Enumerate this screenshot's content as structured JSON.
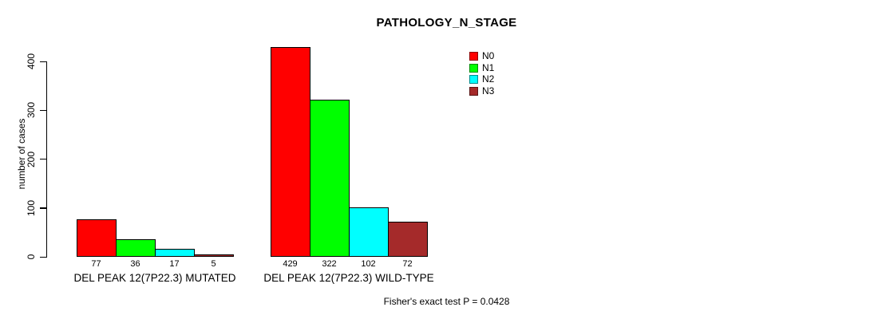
{
  "title": "PATHOLOGY_N_STAGE",
  "chart_data": {
    "type": "bar",
    "title": "PATHOLOGY_N_STAGE",
    "xlabel": "",
    "ylabel": "number of cases",
    "ylim": [
      0,
      400
    ],
    "yticks": [
      0,
      100,
      200,
      300,
      400
    ],
    "grid": false,
    "legend_position": "top-right",
    "bar_value_labels": true,
    "categories": [
      "DEL PEAK 12(7P22.3) MUTATED",
      "DEL PEAK 12(7P22.3) WILD-TYPE"
    ],
    "series": [
      {
        "name": "N0",
        "color": "#FF0000",
        "values": [
          77,
          429
        ]
      },
      {
        "name": "N1",
        "color": "#00FF00",
        "values": [
          36,
          322
        ]
      },
      {
        "name": "N2",
        "color": "#00FFFF",
        "values": [
          17,
          102
        ]
      },
      {
        "name": "N3",
        "color": "#A52A2A",
        "values": [
          5,
          72
        ]
      }
    ]
  },
  "footer": {
    "stat_text": "Fisher's exact test P = 0.0428"
  }
}
